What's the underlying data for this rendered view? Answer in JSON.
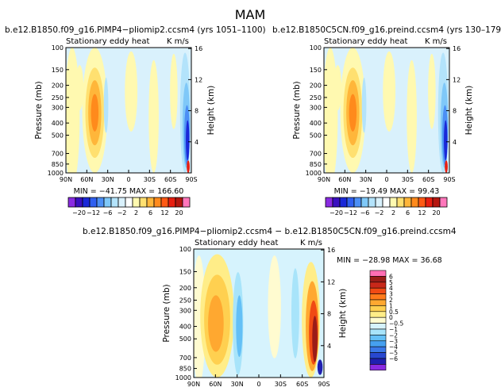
{
  "page_title": "MAM",
  "colors": {
    "table_main": [
      "#8a2be2",
      "#3a0fc0",
      "#1a28d8",
      "#2f5ff0",
      "#4c8ff5",
      "#7fc8f8",
      "#b3e3fb",
      "#d9f1fc",
      "#ffffff",
      "#fff9b0",
      "#ffe070",
      "#ffb63a",
      "#ff8a1c",
      "#ff5a14",
      "#e81e10",
      "#b5160f",
      "#ff77bb"
    ],
    "table_diff": [
      "#8a2be2",
      "#2020b0",
      "#2848d0",
      "#3a78e8",
      "#46a0f0",
      "#64c0f6",
      "#a8e4fa",
      "#d6f3fd",
      "#fffbd0",
      "#ffed88",
      "#ffd050",
      "#ffa830",
      "#ff7a1a",
      "#f04a14",
      "#c8281a",
      "#9a1c18",
      "#ff6eb4"
    ]
  },
  "chart_data": [
    {
      "type": "heatmap",
      "name": "top-left",
      "title": "b.e12.B1850.f09_g16.PIMP4−pliomip2.ccsm4  (yrs 1051–1100)",
      "subtitle_left": "Stationary eddy heat",
      "subtitle_right": "K m/s",
      "ylabel": "Pressure (mb)",
      "ylabel_right": "Height (km)",
      "x_ticks": [
        "90N",
        "60N",
        "30N",
        "0",
        "30S",
        "60S",
        "90S"
      ],
      "y_ticks": [
        "100",
        "150",
        "200",
        "250",
        "300",
        "400",
        "500",
        "700",
        "850",
        "1000"
      ],
      "y_ticks_right": [
        "16",
        "12",
        "8",
        "4"
      ],
      "stats": "MIN = −41.75   MAX = 166.60",
      "colorbar_labels": [
        "−20",
        "−12",
        "−6",
        "−2",
        "2",
        "6",
        "12",
        "20"
      ]
    },
    {
      "type": "heatmap",
      "name": "top-right",
      "title": "b.e12.B1850C5CN.f09_g16.preind.ccsm4  (yrs 130–179)",
      "subtitle_left": "Stationary eddy heat",
      "subtitle_right": "K m/s",
      "ylabel": "Pressure (mb)",
      "ylabel_right": "Height (km)",
      "x_ticks": [
        "90N",
        "60N",
        "30N",
        "0",
        "30S",
        "60S",
        "90S"
      ],
      "y_ticks": [
        "100",
        "150",
        "200",
        "250",
        "300",
        "400",
        "500",
        "700",
        "850",
        "1000"
      ],
      "y_ticks_right": [
        "16",
        "12",
        "8",
        "4"
      ],
      "stats": "MIN = −19.49   MAX = 99.43",
      "colorbar_labels": [
        "−20",
        "−12",
        "−6",
        "−2",
        "2",
        "6",
        "12",
        "20"
      ]
    },
    {
      "type": "heatmap",
      "name": "bottom-difference",
      "title": "b.e12.B1850.f09_g16.PIMP4−pliomip2.ccsm4 − b.e12.B1850C5CN.f09_g16.preind.ccsm4",
      "subtitle_left": "Stationary eddy heat",
      "subtitle_right": "K m/s",
      "ylabel": "Pressure (mb)",
      "ylabel_right": "Height (km)",
      "x_ticks": [
        "90N",
        "60N",
        "30N",
        "0",
        "30S",
        "60S",
        "90S"
      ],
      "y_ticks": [
        "100",
        "150",
        "200",
        "250",
        "300",
        "400",
        "500",
        "700",
        "850",
        "1000"
      ],
      "y_ticks_right": [
        "16",
        "12",
        "8",
        "4"
      ],
      "stats": "MIN = −28.98    MAX =  36.68",
      "colorbar_labels": [
        "6",
        "5",
        "4",
        "3",
        "2",
        "1",
        "0.5",
        "0",
        "−0.5",
        "−1",
        "−2",
        "−3",
        "−4",
        "−5",
        "−6"
      ]
    }
  ]
}
